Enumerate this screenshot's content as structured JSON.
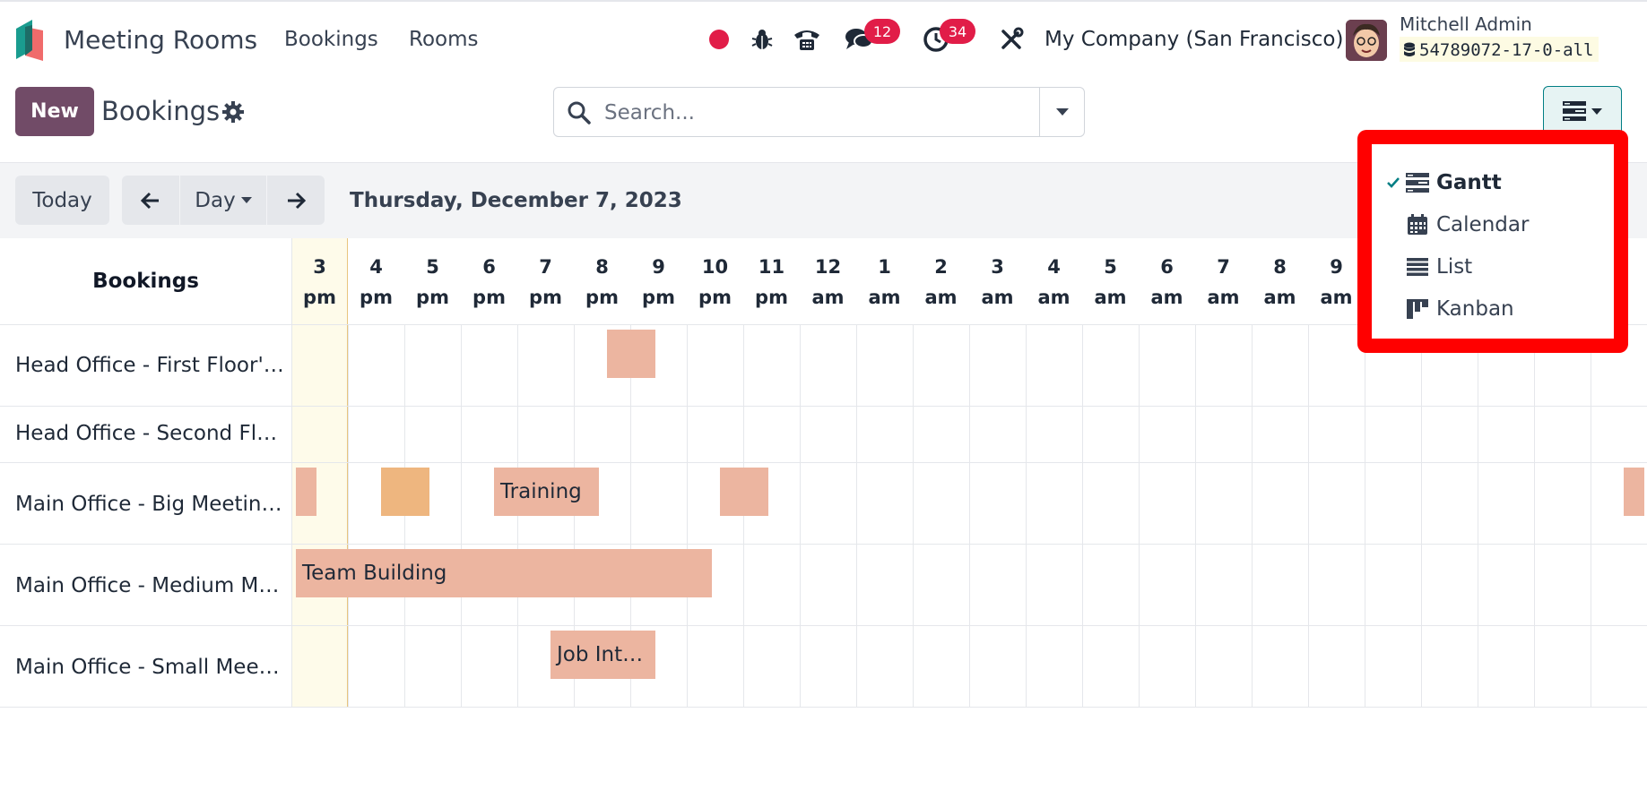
{
  "navbar": {
    "app_name": "Meeting Rooms",
    "menu": [
      "Bookings",
      "Rooms"
    ],
    "messages_count": "12",
    "activities_count": "34",
    "company": "My Company (San Francisco)",
    "user_name": "Mitchell Admin",
    "database": "54789072-17-0-all"
  },
  "control_panel": {
    "new_label": "New",
    "title": "Bookings",
    "search_placeholder": "Search..."
  },
  "gantt_toolbar": {
    "today_label": "Today",
    "scale_label": "Day",
    "date": "Thursday, December 7, 2023"
  },
  "gantt": {
    "row_header": "Bookings",
    "columns": [
      {
        "hour": "3",
        "period": "pm"
      },
      {
        "hour": "4",
        "period": "pm"
      },
      {
        "hour": "5",
        "period": "pm"
      },
      {
        "hour": "6",
        "period": "pm"
      },
      {
        "hour": "7",
        "period": "pm"
      },
      {
        "hour": "8",
        "period": "pm"
      },
      {
        "hour": "9",
        "period": "pm"
      },
      {
        "hour": "10",
        "period": "pm"
      },
      {
        "hour": "11",
        "period": "pm"
      },
      {
        "hour": "12",
        "period": "am"
      },
      {
        "hour": "1",
        "period": "am"
      },
      {
        "hour": "2",
        "period": "am"
      },
      {
        "hour": "3",
        "period": "am"
      },
      {
        "hour": "4",
        "period": "am"
      },
      {
        "hour": "5",
        "period": "am"
      },
      {
        "hour": "6",
        "period": "am"
      },
      {
        "hour": "7",
        "period": "am"
      },
      {
        "hour": "8",
        "period": "am"
      },
      {
        "hour": "9",
        "period": "am"
      }
    ],
    "rows": [
      "Head Office - First Floor'…",
      "Head Office - Second Flo…",
      "Main Office - Big Meetin…",
      "Main Office - Medium M…",
      "Main Office - Small Meet…"
    ],
    "bookings": {
      "training": "Training",
      "team_building": "Team Building",
      "job_interview": "Job Int…"
    },
    "colors": {
      "booking": "#ecb5a0",
      "booking_alt": "#eeb67f",
      "today": "#fefbea"
    }
  },
  "view_menu": {
    "items": [
      {
        "label": "Gantt",
        "icon": "gantt-icon",
        "active": true
      },
      {
        "label": "Calendar",
        "icon": "calendar-icon",
        "active": false
      },
      {
        "label": "List",
        "icon": "list-icon",
        "active": false
      },
      {
        "label": "Kanban",
        "icon": "kanban-icon",
        "active": false
      }
    ],
    "highlight_color": "#ff0000"
  }
}
